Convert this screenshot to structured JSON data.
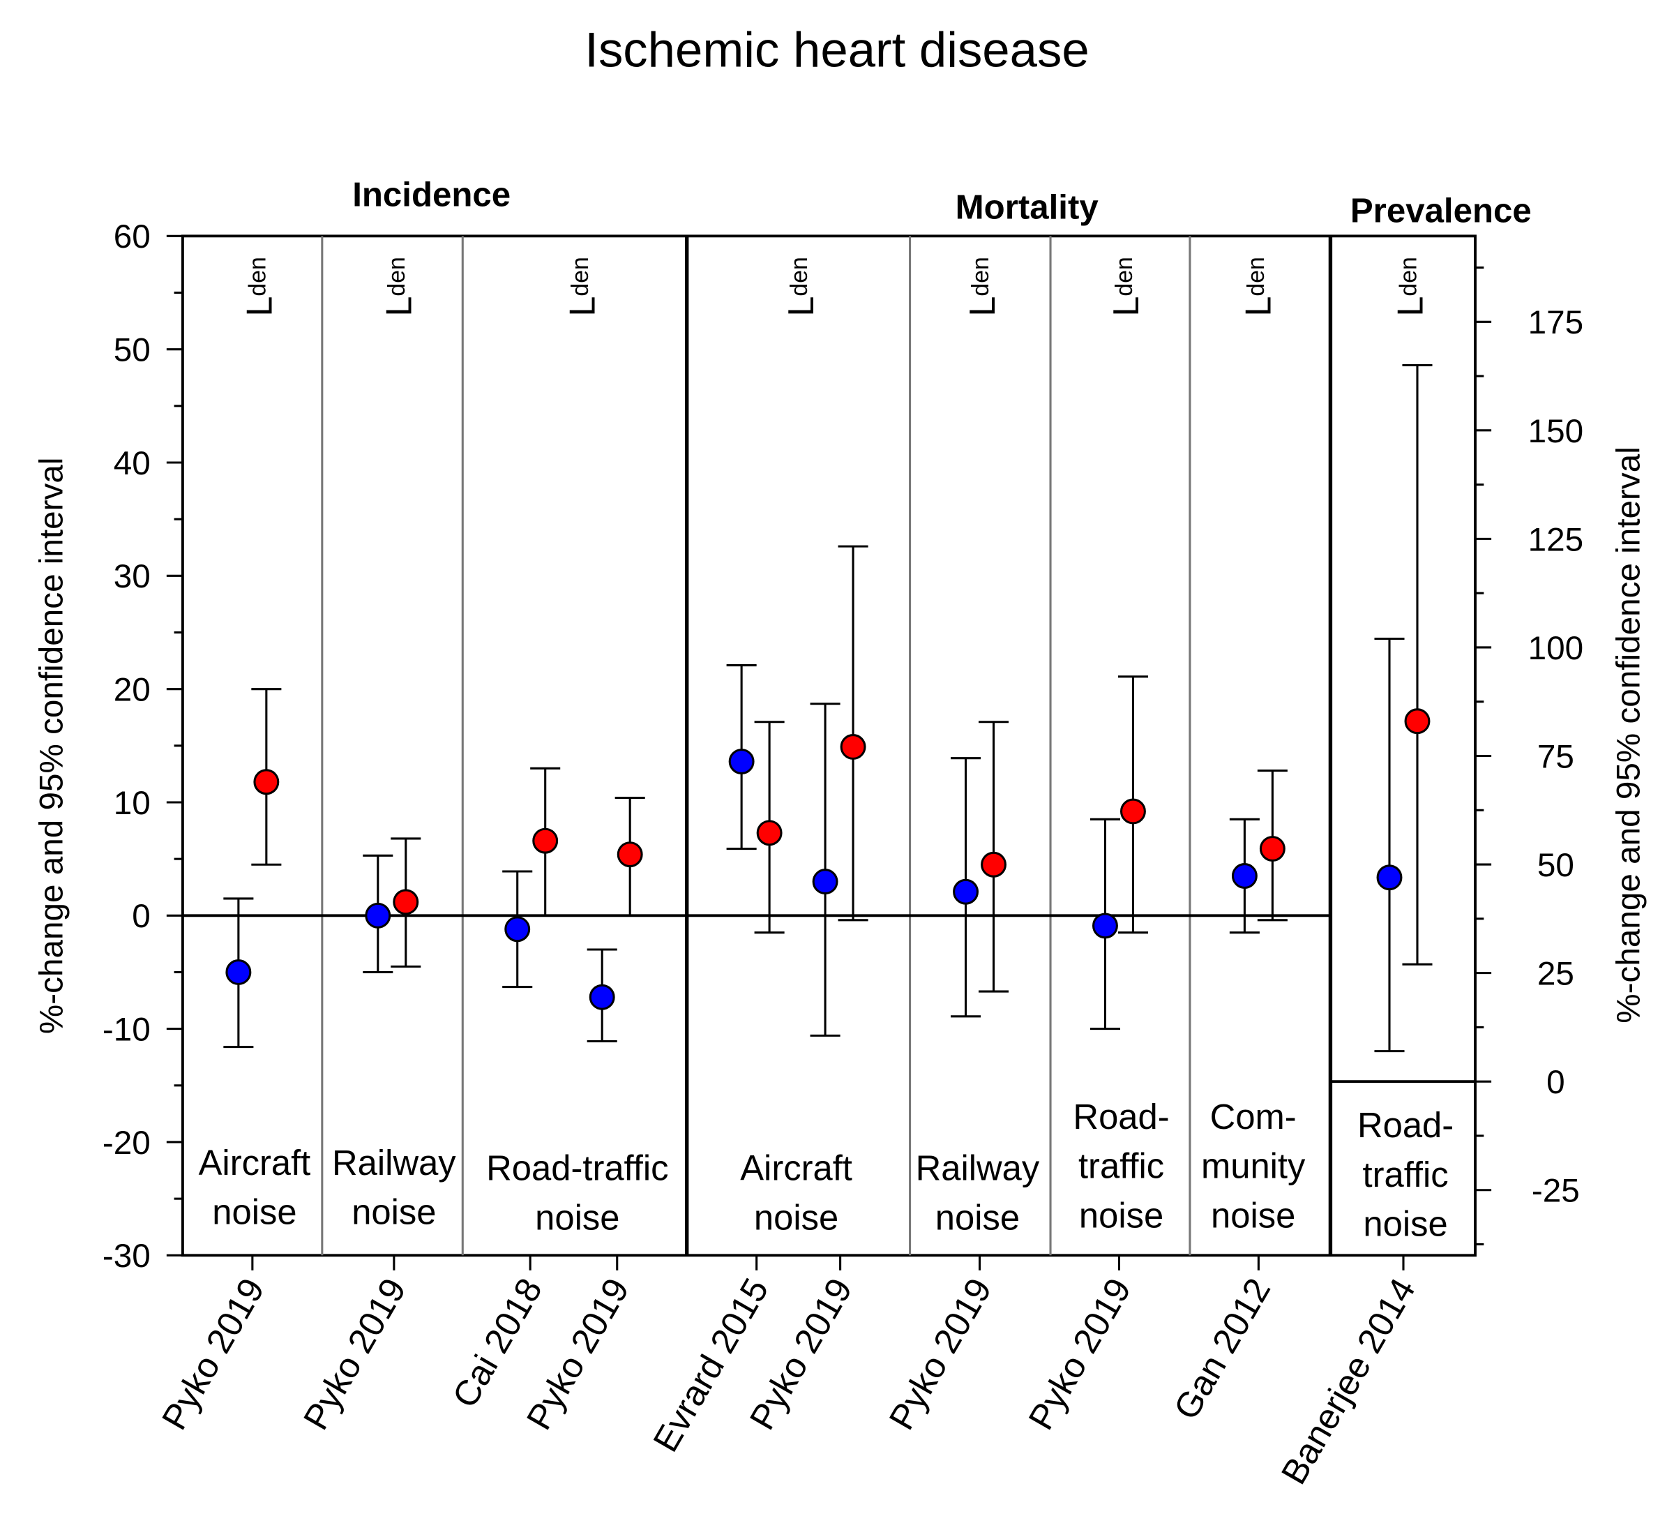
{
  "chart_data": {
    "type": "scatter",
    "title": "Ischemic heart disease",
    "ylabel_left": "%-change and 95% confidence interval",
    "ylabel_right": "%-change and 95% confidence interval",
    "ylim_left": [
      -30,
      60
    ],
    "yticks_left": [
      -30,
      -20,
      -10,
      0,
      10,
      20,
      30,
      40,
      50,
      60
    ],
    "yticks_right": [
      -25,
      0,
      25,
      50,
      75,
      100,
      125,
      150,
      175
    ],
    "metric_label": "L",
    "metric_sub": "den",
    "series_colors": {
      "blue": "#0000ff",
      "red": "#ff0000"
    },
    "groups": [
      {
        "label": "Incidence"
      },
      {
        "label": "Mortality"
      },
      {
        "label": "Prevalence"
      }
    ],
    "panels": [
      {
        "group": 0,
        "noise": [
          "Aircraft",
          "noise"
        ],
        "axis": "left",
        "studies": [
          {
            "label": "Pyko 2019",
            "blue": [
              -5.0,
              -11.6,
              1.5
            ],
            "red": [
              11.8,
              4.5,
              20.0
            ]
          }
        ]
      },
      {
        "group": 0,
        "noise": [
          "Railway",
          "noise"
        ],
        "axis": "left",
        "studies": [
          {
            "label": "Pyko 2019",
            "blue": [
              0.0,
              -5.0,
              5.3
            ],
            "red": [
              1.2,
              -4.5,
              6.8
            ]
          }
        ]
      },
      {
        "group": 0,
        "noise": [
          "Road-traffic",
          "noise"
        ],
        "axis": "left",
        "studies": [
          {
            "label": "Cai 2018",
            "blue": [
              -1.2,
              -6.3,
              3.9
            ],
            "red": [
              6.6,
              0.0,
              13.0
            ]
          },
          {
            "label": "Pyko 2019",
            "blue": [
              -7.2,
              -11.1,
              -3.0
            ],
            "red": [
              5.4,
              0.0,
              10.4
            ]
          }
        ]
      },
      {
        "group": 1,
        "noise": [
          "Aircraft",
          "noise"
        ],
        "axis": "left",
        "studies": [
          {
            "label": "Evrard 2015",
            "blue": [
              13.6,
              5.9,
              22.1
            ],
            "red": [
              7.3,
              -1.5,
              17.1
            ]
          },
          {
            "label": "Pyko 2019",
            "blue": [
              3.0,
              -10.6,
              18.7
            ],
            "red": [
              14.9,
              -0.4,
              32.6
            ]
          }
        ]
      },
      {
        "group": 1,
        "noise": [
          "Railway",
          "noise"
        ],
        "axis": "left",
        "studies": [
          {
            "label": "Pyko 2019",
            "blue": [
              2.1,
              -8.9,
              13.9
            ],
            "red": [
              4.5,
              -6.7,
              17.1
            ]
          }
        ]
      },
      {
        "group": 1,
        "noise": [
          "Road-",
          "traffic",
          "noise"
        ],
        "axis": "left",
        "studies": [
          {
            "label": "Pyko 2019",
            "blue": [
              -0.9,
              -10.0,
              8.5
            ],
            "red": [
              9.2,
              -1.5,
              21.1
            ]
          }
        ]
      },
      {
        "group": 1,
        "noise": [
          "Com-",
          "munity",
          "noise"
        ],
        "axis": "left",
        "studies": [
          {
            "label": "Gan 2012",
            "blue": [
              3.5,
              -1.5,
              8.5
            ],
            "red": [
              5.9,
              -0.4,
              12.8
            ]
          }
        ]
      },
      {
        "group": 2,
        "noise": [
          "Road-",
          "traffic",
          "noise"
        ],
        "axis": "right",
        "studies": [
          {
            "label": "Banerjee 2014",
            "blue": [
              47,
              7,
              102
            ],
            "red": [
              83,
              27,
              165
            ]
          }
        ]
      }
    ]
  }
}
